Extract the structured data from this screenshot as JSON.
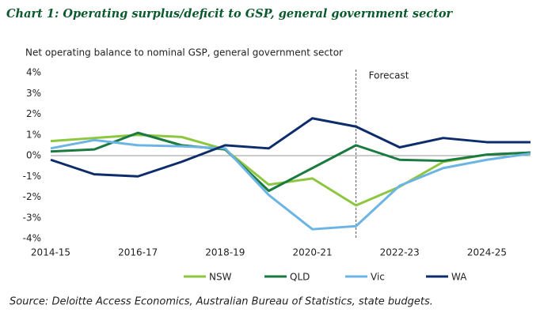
{
  "chart_data": {
    "type": "line",
    "title": "Chart 1: Operating surplus/deficit to GSP, general government sector",
    "subtitle": "Net operating balance to nominal GSP, general government sector",
    "source": "Source: Deloitte Access Economics, Australian Bureau of Statistics, state budgets.",
    "categories": [
      "2014-15",
      null,
      "2016-17",
      null,
      "2018-19",
      null,
      "2020-21",
      null,
      "2022-23",
      null,
      "2024-25",
      null
    ],
    "series": [
      {
        "name": "NSW",
        "color": "#8dc63f",
        "values": [
          0.7,
          0.85,
          1.0,
          0.9,
          0.3,
          -1.4,
          -1.1,
          -2.4,
          -1.5,
          -0.3,
          0.05,
          0.15
        ]
      },
      {
        "name": "QLD",
        "color": "#1a7a40",
        "values": [
          0.2,
          0.3,
          1.1,
          0.5,
          0.3,
          -1.7,
          -0.6,
          0.5,
          -0.2,
          -0.25,
          0.05,
          0.15
        ]
      },
      {
        "name": "Vic",
        "color": "#6cb4e4",
        "values": [
          0.35,
          0.75,
          0.5,
          0.45,
          0.35,
          -1.9,
          -3.55,
          -3.4,
          -1.45,
          -0.6,
          -0.2,
          0.1
        ]
      },
      {
        "name": "WA",
        "color": "#0d2c6c",
        "values": [
          -0.2,
          -0.9,
          -1.0,
          -0.3,
          0.5,
          0.35,
          1.8,
          1.4,
          0.4,
          0.85,
          0.65,
          0.65
        ]
      }
    ],
    "ylim": [
      -4,
      4
    ],
    "yticks": [
      {
        "value": 4,
        "label": "4%"
      },
      {
        "value": 3,
        "label": "3%"
      },
      {
        "value": 2,
        "label": "2%"
      },
      {
        "value": 1,
        "label": "1%"
      },
      {
        "value": 0,
        "label": "0%"
      },
      {
        "value": -1,
        "label": "-1%"
      },
      {
        "value": -2,
        "label": "-2%"
      },
      {
        "value": -3,
        "label": "-3%"
      },
      {
        "value": -4,
        "label": "-4%"
      }
    ],
    "annotations": [
      {
        "text": "Forecast",
        "at": 7
      }
    ],
    "grid": false,
    "legend": "bottom"
  }
}
